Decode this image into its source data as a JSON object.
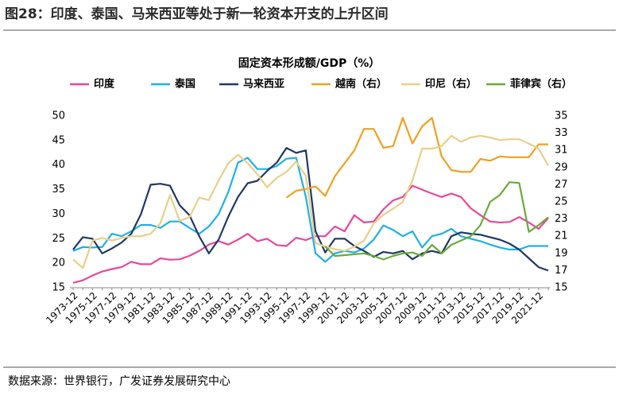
{
  "title": "图28：印度、泰国、马来西亚等处于新一轮资本开支的上升区间",
  "source": "数据来源：世界银行，广发证券发展研究中心",
  "chart_data": {
    "type": "line",
    "title": "固定资本形成额/GDP（%）",
    "legend": "top",
    "categories": [
      "1973-12",
      null,
      "1975-12",
      null,
      "1977-12",
      null,
      "1979-12",
      null,
      "1981-12",
      null,
      "1983-12",
      null,
      "1985-12",
      null,
      "1987-12",
      null,
      "1989-12",
      null,
      "1991-12",
      null,
      "1993-12",
      null,
      "1995-12",
      null,
      "1997-12",
      null,
      "1999-12",
      null,
      "2001-12",
      null,
      "2003-12",
      null,
      "2005-12",
      null,
      "2007-12",
      null,
      "2009-12",
      null,
      "2011-12",
      null,
      "2013-12",
      null,
      "2015-12",
      null,
      "2017-12",
      null,
      "2019-12",
      null,
      "2021-12",
      null
    ],
    "ylim": [
      15,
      50
    ],
    "yticks": [
      15,
      20,
      25,
      30,
      35,
      40,
      45,
      50
    ],
    "y2lim": [
      15,
      35
    ],
    "y2ticks": [
      15,
      17,
      19,
      21,
      23,
      25,
      27,
      29,
      31,
      33,
      35
    ],
    "series": [
      {
        "name": "印度",
        "color": "#e8489a",
        "values": [
          16,
          16.5,
          17.5,
          18.3,
          18.8,
          19.2,
          20.3,
          19.8,
          19.8,
          21,
          20.7,
          20.8,
          21.5,
          22.5,
          23.8,
          24.5,
          23.8,
          24.8,
          26,
          24.5,
          25,
          23.7,
          23.5,
          25.2,
          24.7,
          25.5,
          25.5,
          27.5,
          26.5,
          29.8,
          28.3,
          28.5,
          31,
          32.8,
          33.5,
          35.8,
          35,
          34.2,
          33.5,
          34.2,
          33.5,
          31.2,
          29.8,
          28.5,
          28.3,
          28.4,
          29.4,
          28.3,
          27,
          29.2
        ]
      },
      {
        "name": "泰国",
        "color": "#1fb0e6",
        "values": [
          22.5,
          23.3,
          23.2,
          23.3,
          26,
          25.5,
          26.5,
          27.8,
          27.8,
          27.2,
          28.5,
          28.5,
          27.2,
          26,
          27.5,
          30,
          34.5,
          40.5,
          41.5,
          39.2,
          39.2,
          39.8,
          41.3,
          41.5,
          33.5,
          22,
          20.3,
          22,
          22.5,
          22.2,
          23,
          24.8,
          27.7,
          26.8,
          25.5,
          26.5,
          23.2,
          25.5,
          26,
          27,
          25.5,
          25,
          24.5,
          23.8,
          23.2,
          22.8,
          22.8,
          23.5,
          23.5,
          23.5
        ]
      },
      {
        "name": "马来西亚",
        "color": "#203864",
        "values": [
          22.8,
          25.3,
          25,
          22,
          23,
          24.2,
          26,
          30,
          36,
          36.2,
          35.8,
          31.8,
          29.8,
          25.5,
          22,
          24.8,
          29.5,
          33.5,
          36.3,
          36.8,
          38.8,
          40.5,
          43.5,
          42.5,
          43,
          26.5,
          22.2,
          25,
          25,
          23.5,
          22.5,
          21.3,
          22.3,
          22,
          22.5,
          20.8,
          22,
          22.5,
          22,
          25.5,
          26.3,
          26,
          25.8,
          25.3,
          24.8,
          24,
          22.8,
          21,
          19.2,
          18.5
        ]
      },
      {
        "name": "越南（右）",
        "color": "#f0a020",
        "axis": "y2",
        "values": [
          null,
          null,
          null,
          null,
          null,
          null,
          null,
          null,
          null,
          null,
          null,
          null,
          null,
          null,
          null,
          null,
          null,
          null,
          null,
          null,
          null,
          null,
          25.5,
          26.3,
          26.5,
          26.8,
          25.7,
          28,
          29.5,
          31,
          33.5,
          33.5,
          31.3,
          31.5,
          34.8,
          31.8,
          33.8,
          34.8,
          30.3,
          28.7,
          28.5,
          28.5,
          30,
          29.8,
          30.3,
          30.2,
          30.2,
          30.2,
          31.7,
          31.7
        ]
      },
      {
        "name": "印尼（右）",
        "color": "#e8cf8a",
        "axis": "y2",
        "values": [
          18.3,
          17.3,
          20.5,
          20.8,
          20.5,
          20.8,
          21,
          21,
          21.3,
          22.5,
          25.8,
          22.8,
          23.2,
          25.5,
          25.2,
          27.5,
          29.5,
          30.5,
          29.5,
          28.2,
          26.7,
          27.8,
          28.5,
          29.7,
          28,
          20.2,
          19.8,
          19.5,
          19.3,
          19.8,
          20.5,
          22.5,
          23.5,
          24.2,
          25,
          27.5,
          31.2,
          31.2,
          31.5,
          32.7,
          32,
          32.5,
          32.7,
          32.5,
          32.2,
          32.3,
          32.3,
          31.8,
          31.2,
          29.2
        ]
      },
      {
        "name": "菲律宾（右）",
        "color": "#6aaa3a",
        "axis": "y2",
        "values": [
          null,
          null,
          null,
          null,
          null,
          null,
          null,
          null,
          null,
          null,
          null,
          null,
          null,
          null,
          null,
          null,
          null,
          null,
          null,
          null,
          null,
          null,
          null,
          null,
          null,
          null,
          19.8,
          18.7,
          18.8,
          18.9,
          19,
          18.7,
          18.3,
          18.7,
          19,
          19.1,
          18.7,
          20,
          19,
          20,
          20.5,
          21,
          22.3,
          25,
          25.8,
          27.3,
          27.2,
          21.5,
          22.3,
          23.2
        ]
      }
    ]
  }
}
